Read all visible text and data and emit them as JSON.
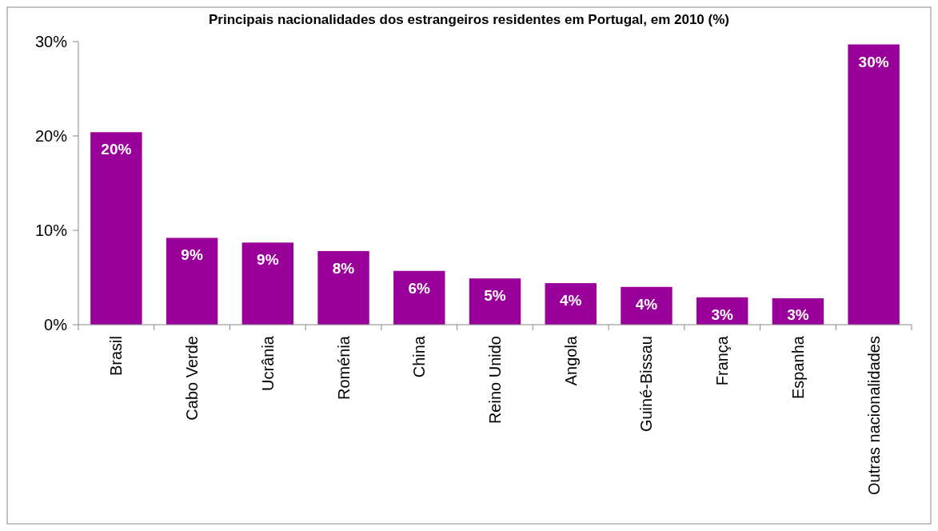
{
  "chart_data": {
    "type": "bar",
    "title": "Principais nacionalidades dos estrangeiros residentes em Portugal, em 2010 (%)",
    "categories": [
      "Brasil",
      "Cabo Verde",
      "Ucrânia",
      "Roménia",
      "China",
      "Reino Unido",
      "Angola",
      "Guiné-Bissau",
      "França",
      "Espanha",
      "Outras nacionalidades"
    ],
    "values": [
      20.4,
      9.2,
      8.7,
      7.8,
      5.7,
      4.9,
      4.4,
      4.0,
      2.9,
      2.8,
      29.7
    ],
    "value_labels": [
      "20%",
      "9%",
      "9%",
      "8%",
      "6%",
      "5%",
      "4%",
      "4%",
      "3%",
      "3%",
      "30%"
    ],
    "color": "#990099",
    "ylim": [
      0,
      30
    ],
    "yticks": [
      {
        "value": 0,
        "label": "0%"
      },
      {
        "value": 10,
        "label": "10%"
      },
      {
        "value": 20,
        "label": "20%"
      },
      {
        "value": 30,
        "label": "30%"
      }
    ],
    "grid": false
  }
}
